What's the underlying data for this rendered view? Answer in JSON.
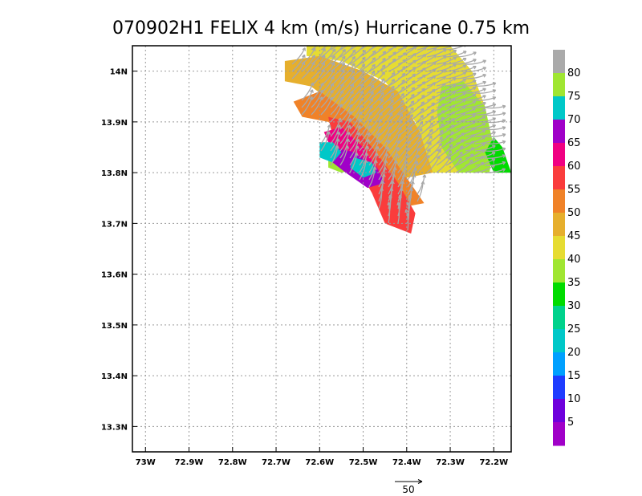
{
  "chart_data": {
    "type": "heatmap",
    "title": "070902H1 FELIX 4 km (m/s) Hurricane 0.75 km",
    "xlabel": "",
    "ylabel": "",
    "x_range": [
      -73.03,
      -72.16
    ],
    "y_range": [
      13.25,
      14.05
    ],
    "x_ticks": [
      {
        "value": -73.0,
        "label": "73W"
      },
      {
        "value": -72.9,
        "label": "72.9W"
      },
      {
        "value": -72.8,
        "label": "72.8W"
      },
      {
        "value": -72.7,
        "label": "72.7W"
      },
      {
        "value": -72.6,
        "label": "72.6W"
      },
      {
        "value": -72.5,
        "label": "72.5W"
      },
      {
        "value": -72.4,
        "label": "72.4W"
      },
      {
        "value": -72.3,
        "label": "72.3W"
      },
      {
        "value": -72.2,
        "label": "72.2W"
      }
    ],
    "y_ticks": [
      {
        "value": 14.0,
        "label": "14N"
      },
      {
        "value": 13.9,
        "label": "13.9N"
      },
      {
        "value": 13.8,
        "label": "13.8N"
      },
      {
        "value": 13.7,
        "label": "13.7N"
      },
      {
        "value": 13.6,
        "label": "13.6N"
      },
      {
        "value": 13.5,
        "label": "13.5N"
      },
      {
        "value": 13.4,
        "label": "13.4N"
      },
      {
        "value": 13.3,
        "label": "13.3N"
      }
    ],
    "grid": true,
    "colorbar": {
      "labels": [
        "5",
        "10",
        "15",
        "20",
        "25",
        "30",
        "35",
        "40",
        "45",
        "50",
        "55",
        "60",
        "65",
        "70",
        "75",
        "80"
      ],
      "colors": [
        "#a000c8",
        "#6e00dc",
        "#1e3cff",
        "#00a0ff",
        "#00c8c8",
        "#00d28c",
        "#00dc00",
        "#a0e632",
        "#e6dc32",
        "#e6af2d",
        "#f08228",
        "#fa3c3c",
        "#f00082",
        "#a000c8",
        "#00c8c8",
        "#a0e632",
        "#aaaaaa"
      ]
    },
    "reference_vector": {
      "label": "50",
      "magnitude": 50
    },
    "regions": [
      {
        "speed": 45,
        "color": "#e6dc32",
        "polygon": [
          [
            -72.63,
            14.05
          ],
          [
            -72.3,
            14.05
          ],
          [
            -72.25,
            14.0
          ],
          [
            -72.22,
            13.93
          ],
          [
            -72.22,
            13.85
          ],
          [
            -72.28,
            13.8
          ],
          [
            -72.35,
            13.8
          ],
          [
            -72.38,
            13.9
          ],
          [
            -72.45,
            13.98
          ],
          [
            -72.55,
            14.02
          ],
          [
            -72.63,
            14.03
          ]
        ]
      },
      {
        "speed": 35,
        "color": "#a0e632",
        "polygon": [
          [
            -72.32,
            13.97
          ],
          [
            -72.27,
            13.98
          ],
          [
            -72.22,
            13.93
          ],
          [
            -72.2,
            13.85
          ],
          [
            -72.21,
            13.8
          ],
          [
            -72.28,
            13.8
          ],
          [
            -72.32,
            13.85
          ],
          [
            -72.33,
            13.92
          ]
        ]
      },
      {
        "speed": 40,
        "color": "#a0e632",
        "polygon": [
          [
            -72.58,
            13.84
          ],
          [
            -72.53,
            13.83
          ],
          [
            -72.5,
            13.81
          ],
          [
            -72.55,
            13.8
          ],
          [
            -72.58,
            13.81
          ]
        ]
      },
      {
        "speed": 30,
        "color": "#00dc00",
        "polygon": [
          [
            -72.2,
            13.87
          ],
          [
            -72.18,
            13.85
          ],
          [
            -72.16,
            13.8
          ],
          [
            -72.2,
            13.8
          ],
          [
            -72.22,
            13.84
          ]
        ]
      },
      {
        "speed": 50,
        "color": "#e6af2d",
        "polygon": [
          [
            -72.68,
            14.02
          ],
          [
            -72.6,
            14.03
          ],
          [
            -72.5,
            14.0
          ],
          [
            -72.42,
            13.96
          ],
          [
            -72.37,
            13.88
          ],
          [
            -72.34,
            13.8
          ],
          [
            -72.4,
            13.79
          ],
          [
            -72.46,
            13.85
          ],
          [
            -72.54,
            13.92
          ],
          [
            -72.62,
            13.97
          ],
          [
            -72.68,
            13.98
          ]
        ]
      },
      {
        "speed": 55,
        "color": "#f08228",
        "polygon": [
          [
            -72.66,
            13.94
          ],
          [
            -72.6,
            13.96
          ],
          [
            -72.52,
            13.91
          ],
          [
            -72.45,
            13.85
          ],
          [
            -72.4,
            13.79
          ],
          [
            -72.36,
            13.74
          ],
          [
            -72.42,
            13.73
          ],
          [
            -72.46,
            13.78
          ],
          [
            -72.5,
            13.84
          ],
          [
            -72.58,
            13.9
          ],
          [
            -72.64,
            13.91
          ]
        ]
      },
      {
        "speed": 60,
        "color": "#fa3c3c",
        "polygon": [
          [
            -72.58,
            13.91
          ],
          [
            -72.53,
            13.9
          ],
          [
            -72.47,
            13.84
          ],
          [
            -72.42,
            13.78
          ],
          [
            -72.38,
            13.72
          ],
          [
            -72.39,
            13.68
          ],
          [
            -72.45,
            13.7
          ],
          [
            -72.48,
            13.76
          ],
          [
            -72.52,
            13.82
          ],
          [
            -72.57,
            13.87
          ]
        ]
      },
      {
        "speed": 65,
        "color": "#f00082",
        "polygon": [
          [
            -72.59,
            13.88
          ],
          [
            -72.55,
            13.89
          ],
          [
            -72.5,
            13.85
          ],
          [
            -72.46,
            13.8
          ],
          [
            -72.47,
            13.78
          ],
          [
            -72.52,
            13.8
          ],
          [
            -72.57,
            13.84
          ]
        ]
      },
      {
        "speed": 70,
        "color": "#a000c8",
        "polygon": [
          [
            -72.57,
            13.85
          ],
          [
            -72.52,
            13.84
          ],
          [
            -72.47,
            13.81
          ],
          [
            -72.45,
            13.78
          ],
          [
            -72.49,
            13.77
          ],
          [
            -72.54,
            13.8
          ],
          [
            -72.57,
            13.82
          ]
        ]
      },
      {
        "speed": 75,
        "color": "#00c8c8",
        "polygon": [
          [
            -72.6,
            13.86
          ],
          [
            -72.57,
            13.86
          ],
          [
            -72.55,
            13.84
          ],
          [
            -72.57,
            13.82
          ],
          [
            -72.6,
            13.83
          ]
        ]
      },
      {
        "speed": 75,
        "color": "#00c8c8",
        "polygon": [
          [
            -72.52,
            13.83
          ],
          [
            -72.48,
            13.82
          ],
          [
            -72.47,
            13.8
          ],
          [
            -72.5,
            13.79
          ],
          [
            -72.53,
            13.81
          ]
        ]
      }
    ]
  }
}
